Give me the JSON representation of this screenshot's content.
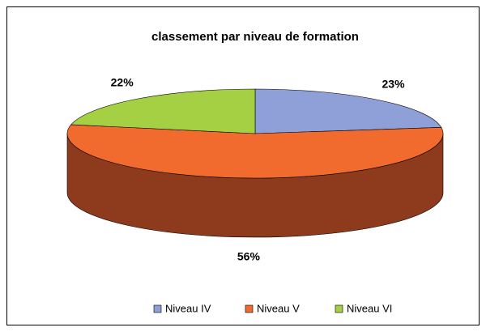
{
  "chart_data": {
    "type": "pie3d",
    "title": "classement par niveau de formation",
    "categories": [
      "Niveau IV",
      "Niveau V",
      "Niveau VI"
    ],
    "values": [
      23,
      56,
      22
    ],
    "value_labels": [
      "23%",
      "56%",
      "22%"
    ],
    "colors": [
      "#8f9fd8",
      "#f26b2e",
      "#a6d043"
    ],
    "side_colors": [
      "#56609a",
      "#8e3a1c",
      "#66852a"
    ],
    "legend": "bottom"
  }
}
